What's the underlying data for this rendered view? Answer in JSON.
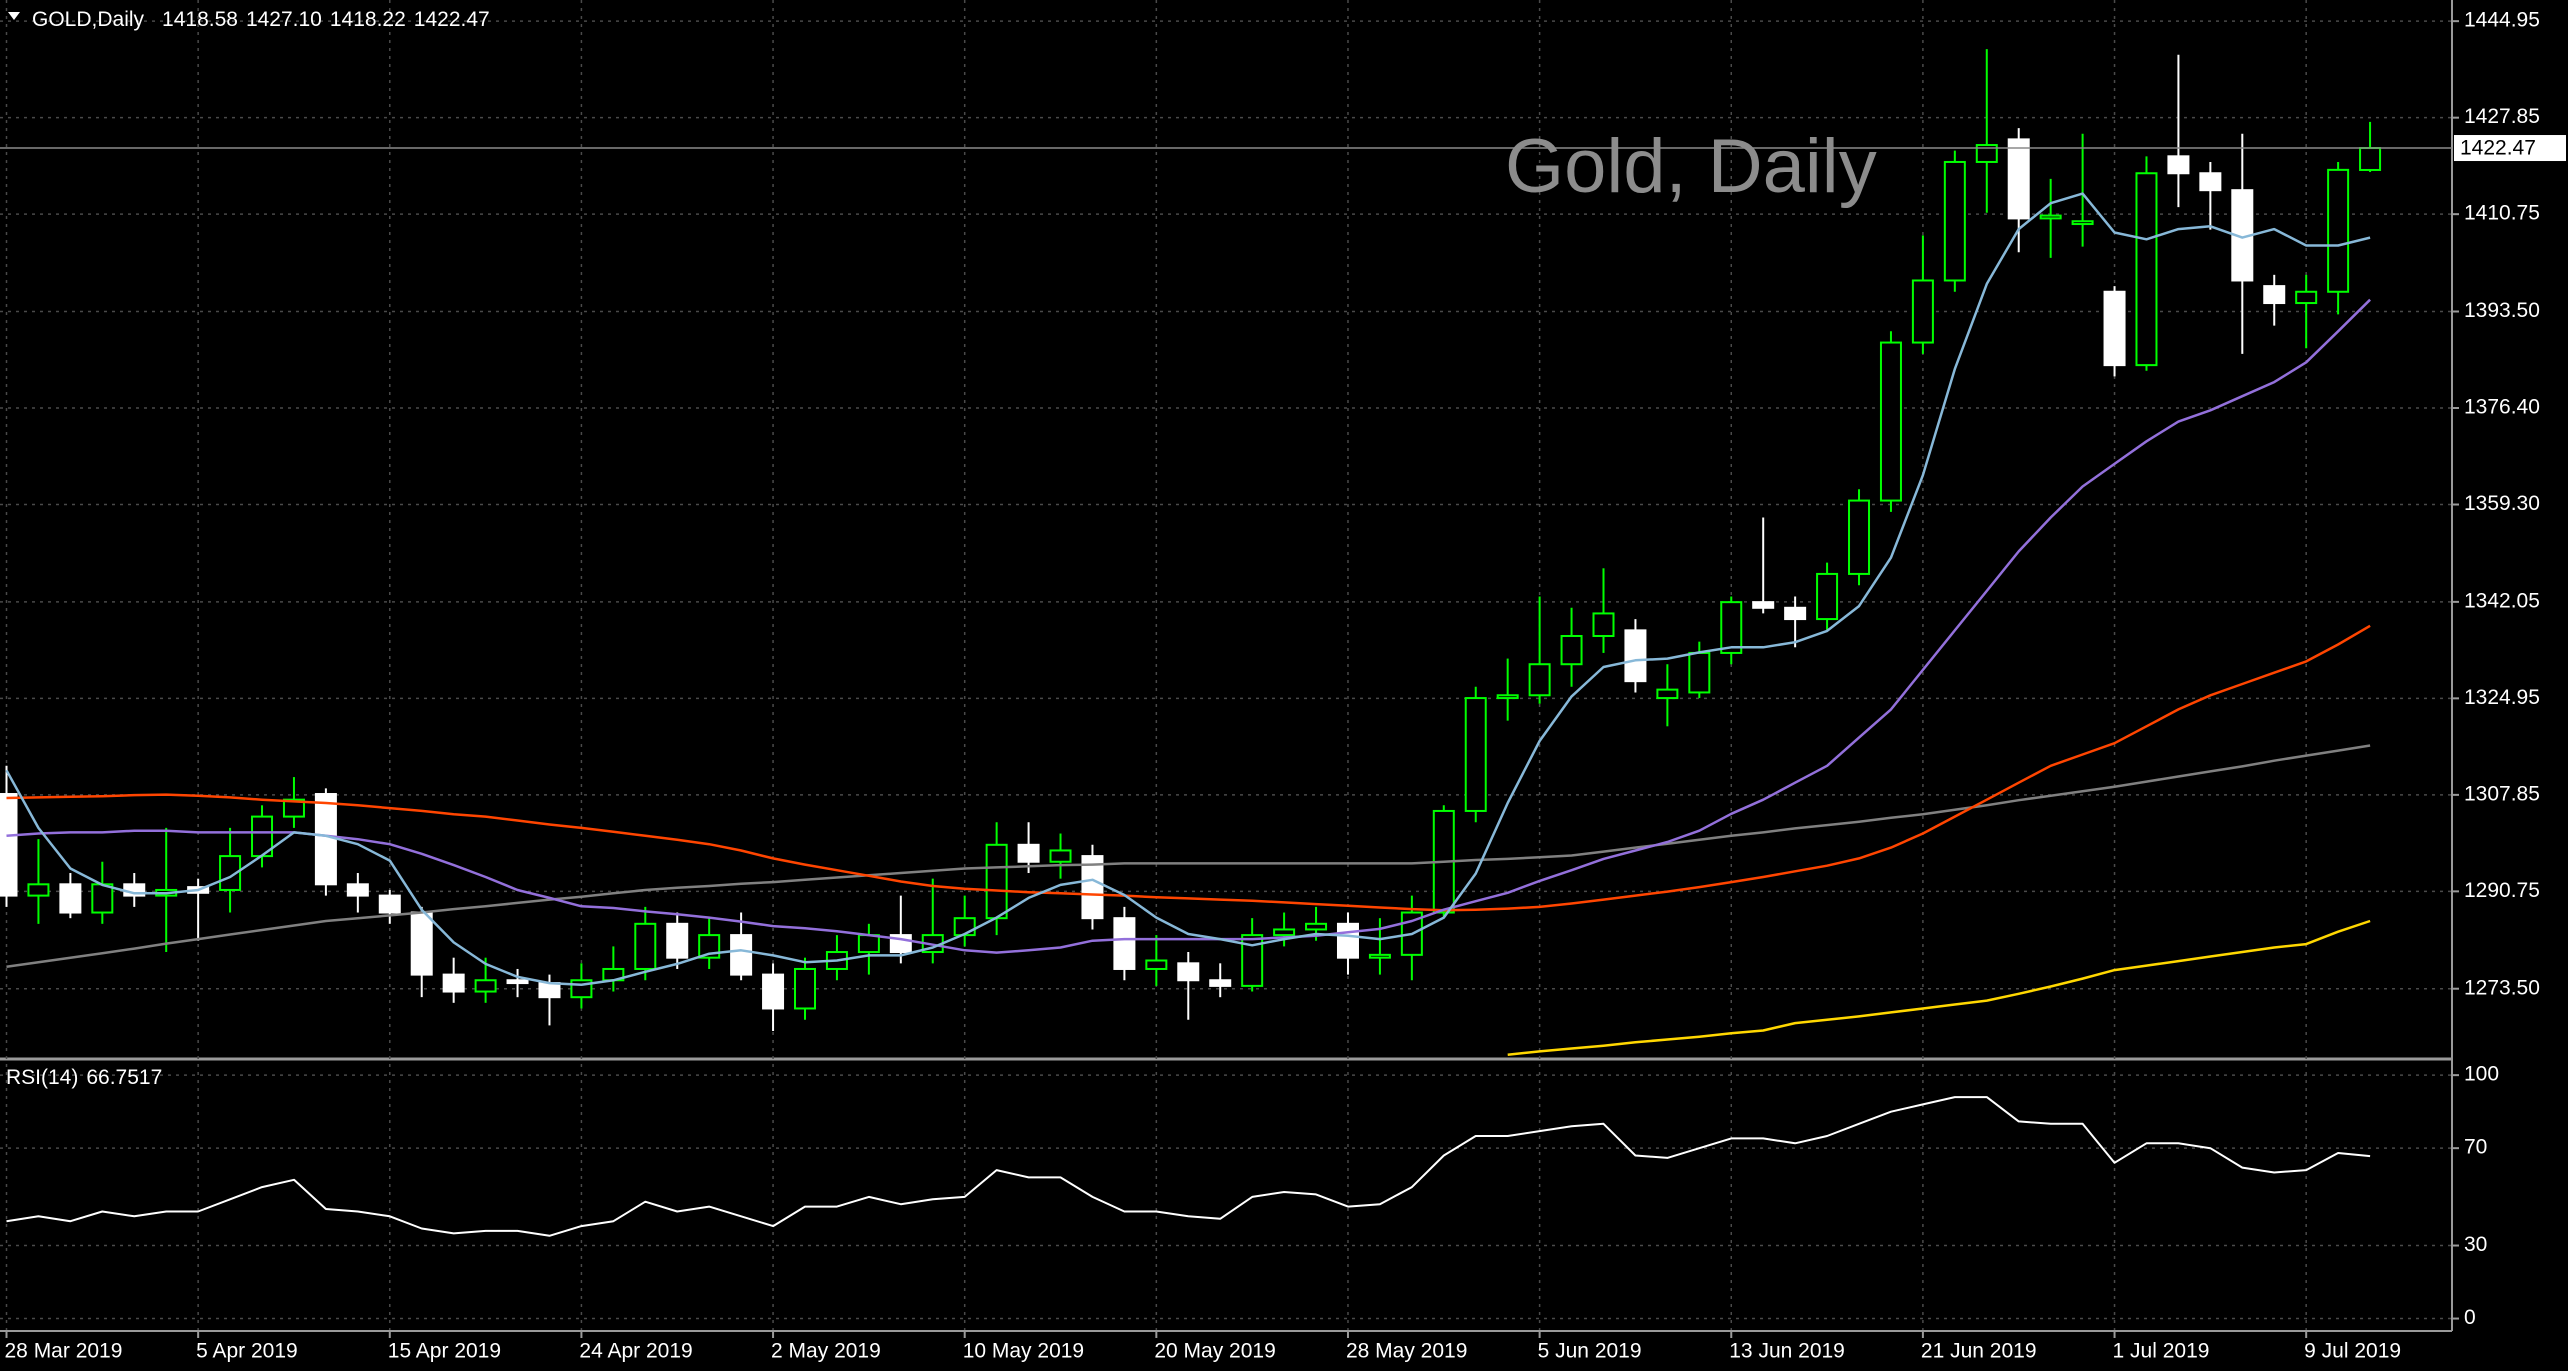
{
  "chart_data": [
    {
      "type": "candlestick",
      "title": "Gold, Daily",
      "header": {
        "symbol": "GOLD,Daily",
        "values": [
          1418.58,
          {
            "value": 1427.1,
            "label": "1427.10"
          },
          1418.22,
          1422.47
        ]
      },
      "categories": [
        "28 Mar 2019",
        null,
        null,
        null,
        null,
        null,
        "5 Apr 2019",
        null,
        null,
        null,
        null,
        null,
        "15 Apr 2019",
        null,
        null,
        null,
        null,
        null,
        "24 Apr 2019",
        null,
        null,
        null,
        null,
        null,
        "2 May 2019",
        null,
        null,
        null,
        null,
        null,
        "10 May 2019",
        null,
        null,
        null,
        null,
        null,
        "20 May 2019",
        null,
        null,
        null,
        null,
        null,
        "28 May 2019",
        null,
        null,
        null,
        null,
        null,
        "5 Jun 2019",
        null,
        null,
        null,
        null,
        null,
        "13 Jun 2019",
        null,
        null,
        null,
        null,
        null,
        "21 Jun 2019",
        null,
        null,
        null,
        null,
        null,
        "1 Jul 2019",
        null,
        null,
        null,
        null,
        null,
        "9 Jul 2019",
        null,
        null
      ],
      "open": [
        1308,
        1290,
        1292,
        1287,
        1292,
        1290,
        1291.5,
        1291,
        1297,
        1304,
        1308,
        1292,
        1290,
        1287,
        1276,
        1273,
        1275,
        1274.5,
        1272,
        1275,
        1277,
        1285,
        1279,
        1283,
        1276,
        1270,
        1277,
        1280,
        1283,
        1280,
        1283,
        1286,
        1299,
        1296,
        1297,
        1286,
        1277,
        1278,
        1275,
        1274,
        1283,
        1284,
        1285,
        1279,
        1279.5,
        1287,
        1305,
        1325,
        1325.5,
        1331,
        1336,
        1337,
        1325,
        1326,
        1333,
        1342,
        1341,
        1339,
        1347,
        1360,
        1388,
        1399,
        1420,
        1424,
        1410,
        1409,
        1397,
        1384,
        1421,
        1418,
        1415,
        1398,
        1395,
        1397,
        1418.58
      ],
      "high": [
        1313,
        1300,
        1294,
        1296,
        1294,
        1302,
        1293,
        1302,
        1306,
        1311,
        1309,
        1294,
        1291,
        1288,
        1279,
        1279,
        1277,
        1276,
        1278,
        1281,
        1288,
        1287,
        1286,
        1287,
        1278,
        1279,
        1283,
        1285,
        1290,
        1293,
        1290,
        1303,
        1303,
        1301,
        1299,
        1288,
        1283,
        1280,
        1278,
        1286,
        1287,
        1288,
        1287,
        1286,
        1290,
        1306,
        1327,
        1332,
        1343,
        1341,
        1348,
        1339,
        1331,
        1335,
        1343,
        1357,
        1343,
        1349,
        1362,
        1390,
        1407,
        1422,
        1440,
        1426,
        1417,
        1425,
        1398,
        1421,
        1439,
        1420,
        1425,
        1400,
        1400,
        1420,
        1427.1
      ],
      "low": [
        1288,
        1285,
        1286,
        1285,
        1288,
        1280,
        1282,
        1287,
        1295,
        1302,
        1290,
        1287,
        1285,
        1272,
        1271,
        1271,
        1272,
        1267,
        1270,
        1273,
        1275,
        1277,
        1277,
        1275,
        1266,
        1268,
        1275,
        1276,
        1278,
        1278,
        1281,
        1283,
        1294,
        1293,
        1284,
        1275,
        1274,
        1268,
        1272,
        1273,
        1281,
        1282,
        1276,
        1276,
        1275,
        1286,
        1303,
        1321,
        1324,
        1327,
        1333,
        1326,
        1320,
        1325,
        1331,
        1340,
        1334,
        1337,
        1345,
        1358,
        1386,
        1397,
        1411,
        1404,
        1403,
        1405,
        1382,
        1383,
        1412,
        1408,
        1386,
        1391,
        1387,
        1393,
        1418.22
      ],
      "close": [
        1290,
        1292,
        1287,
        1292,
        1290,
        1291,
        1290.5,
        1297,
        1304,
        1307,
        1292,
        1290,
        1287,
        1276,
        1273,
        1275,
        1274.5,
        1272,
        1275,
        1277,
        1285,
        1279,
        1283,
        1276,
        1270,
        1277,
        1280,
        1283,
        1280,
        1283,
        1286,
        1299,
        1296,
        1298,
        1286,
        1277,
        1278.5,
        1275,
        1274,
        1283,
        1284,
        1285,
        1279,
        1279.5,
        1287,
        1305,
        1325,
        1325.5,
        1331,
        1336,
        1340,
        1328,
        1326.5,
        1333,
        1342,
        1341,
        1339,
        1347,
        1360,
        1388,
        1399,
        1420,
        1423,
        1410,
        1410.5,
        1409.5,
        1384,
        1418,
        1418,
        1415,
        1399,
        1395,
        1397,
        1418.6,
        1422.47
      ],
      "up_color": "#00ff00",
      "down_color": "#ffffff",
      "series": [
        {
          "color": "#808080",
          "values": [
            1277.4,
            1278.2,
            1279.0,
            1279.8,
            1280.6,
            1281.5,
            1282.3,
            1283.1,
            1283.9,
            1284.7,
            1285.5,
            1286.0,
            1286.5,
            1287.0,
            1287.6,
            1288.1,
            1288.7,
            1289.3,
            1289.8,
            1290.4,
            1291.0,
            1291.4,
            1291.7,
            1292.1,
            1292.4,
            1292.8,
            1293.2,
            1293.6,
            1294.0,
            1294.4,
            1294.8,
            1295.0,
            1295.2,
            1295.4,
            1295.5,
            1295.7,
            1295.7,
            1295.7,
            1295.7,
            1295.7,
            1295.7,
            1295.7,
            1295.7,
            1295.7,
            1295.7,
            1296.0,
            1296.3,
            1296.5,
            1296.8,
            1297.1,
            1297.8,
            1298.5,
            1299.2,
            1299.9,
            1300.6,
            1301.2,
            1301.9,
            1302.5,
            1303.1,
            1303.8,
            1304.4,
            1305.2,
            1306.0,
            1306.9,
            1307.7,
            1308.5,
            1309.3,
            1310.2,
            1311.1,
            1312.0,
            1312.9,
            1313.9,
            1314.8,
            1315.7,
            1316.6
          ]
        },
        {
          "color": "#ffd700",
          "values": [
            null,
            null,
            null,
            null,
            null,
            null,
            null,
            null,
            null,
            null,
            null,
            null,
            null,
            null,
            null,
            null,
            null,
            null,
            null,
            null,
            null,
            null,
            null,
            null,
            null,
            null,
            null,
            null,
            null,
            null,
            null,
            null,
            null,
            null,
            null,
            null,
            null,
            null,
            null,
            null,
            null,
            null,
            null,
            null,
            null,
            null,
            null,
            1261.8,
            1262.4,
            1262.9,
            1263.4,
            1264.0,
            1264.5,
            1265.0,
            1265.6,
            1266.1,
            1267.4,
            1268.0,
            1268.6,
            1269.3,
            1270.0,
            1270.7,
            1271.4,
            1272.6,
            1273.9,
            1275.3,
            1276.8,
            1277.6,
            1278.4,
            1279.2,
            1280.0,
            1280.8,
            1281.4,
            1283.6,
            1285.5
          ]
        },
        {
          "color": "#ff4500",
          "values": [
            1307.3,
            1307.4,
            1307.5,
            1307.6,
            1307.8,
            1307.9,
            1307.7,
            1307.4,
            1307.0,
            1306.7,
            1306.4,
            1306.0,
            1305.5,
            1305.0,
            1304.4,
            1304.0,
            1303.3,
            1302.6,
            1302.0,
            1301.3,
            1300.6,
            1299.9,
            1299.1,
            1298.0,
            1296.6,
            1295.5,
            1294.5,
            1293.5,
            1292.5,
            1291.7,
            1291.2,
            1290.9,
            1290.6,
            1290.4,
            1290.2,
            1290.0,
            1289.7,
            1289.5,
            1289.3,
            1289.1,
            1288.8,
            1288.5,
            1288.2,
            1287.9,
            1287.6,
            1287.4,
            1287.5,
            1287.7,
            1288.0,
            1288.6,
            1289.3,
            1290.0,
            1290.7,
            1291.5,
            1292.4,
            1293.3,
            1294.3,
            1295.3,
            1296.6,
            1298.5,
            1301.0,
            1304.0,
            1307.0,
            1310.0,
            1313.0,
            1315.0,
            1317.0,
            1320.0,
            1323.0,
            1325.5,
            1327.5,
            1329.5,
            1331.5,
            1334.5,
            1337.8
          ]
        },
        {
          "color": "#9370db",
          "values": [
            1300.6,
            1301.0,
            1301.2,
            1301.2,
            1301.5,
            1301.5,
            1301.2,
            1301.2,
            1301.2,
            1301.2,
            1300.6,
            1300.0,
            1299.1,
            1297.4,
            1295.4,
            1293.3,
            1291.0,
            1289.6,
            1288.1,
            1287.8,
            1287.2,
            1286.7,
            1286.1,
            1285.4,
            1284.6,
            1284.2,
            1283.7,
            1283.0,
            1282.3,
            1281.3,
            1280.3,
            1279.9,
            1280.3,
            1280.8,
            1282.0,
            1282.3,
            1282.3,
            1282.3,
            1282.3,
            1282.3,
            1282.6,
            1282.9,
            1283.5,
            1284.1,
            1285.5,
            1287.5,
            1289.0,
            1290.5,
            1292.6,
            1294.5,
            1296.5,
            1298.0,
            1299.5,
            1301.5,
            1304.5,
            1307.0,
            1310.0,
            1313.0,
            1318.0,
            1323.0,
            1330.0,
            1337.0,
            1344.0,
            1351.0,
            1357.0,
            1362.5,
            1366.5,
            1370.5,
            1374.0,
            1376.0,
            1378.5,
            1381.0,
            1384.5,
            1390.0,
            1395.6
          ]
        },
        {
          "color": "#87b8d8",
          "values": [
            1312.2,
            1302.0,
            1294.8,
            1291.9,
            1290.4,
            1290.4,
            1291.0,
            1293.3,
            1297.1,
            1301.2,
            1300.6,
            1299.1,
            1296.2,
            1287.5,
            1281.7,
            1277.9,
            1275.6,
            1274.5,
            1274.2,
            1275.0,
            1276.5,
            1277.9,
            1279.7,
            1280.3,
            1279.4,
            1278.2,
            1278.5,
            1279.4,
            1279.4,
            1280.8,
            1283.2,
            1286.1,
            1289.6,
            1291.9,
            1292.8,
            1290.1,
            1286.1,
            1283.2,
            1282.3,
            1281.2,
            1282.3,
            1283.2,
            1282.9,
            1282.3,
            1283.2,
            1286.1,
            1293.9,
            1306.4,
            1317.4,
            1325.3,
            1330.5,
            1331.7,
            1332.0,
            1333.1,
            1334.0,
            1334.0,
            1334.9,
            1336.9,
            1341.3,
            1349.9,
            1364.5,
            1383.3,
            1398.4,
            1408.1,
            1412.7,
            1414.4,
            1407.5,
            1406.3,
            1408.1,
            1408.6,
            1406.6,
            1408.1,
            1405.2,
            1405.2,
            1406.6
          ]
        }
      ],
      "last_price": 1422.47,
      "ylim": [
        1261.4,
        1448.7
      ],
      "yticks": [
        1444.95,
        1427.85,
        1410.75,
        {
          "value": 1393.5,
          "label": "1393.50"
        },
        {
          "value": 1376.4,
          "label": "1376.40"
        },
        {
          "value": 1359.3,
          "label": "1359.30"
        },
        1342.05,
        1324.95,
        1307.85,
        1290.75,
        {
          "value": 1273.5,
          "label": "1273.50"
        }
      ],
      "grid": true
    },
    {
      "type": "line",
      "title": "RSI(14)",
      "color": "#ffffff",
      "values": [
        40,
        42,
        40,
        44,
        42,
        44,
        44,
        49,
        54,
        57,
        45,
        44,
        42,
        37,
        35,
        36,
        36,
        34,
        38,
        40,
        48,
        44,
        46,
        42,
        38,
        46,
        46,
        50,
        47,
        49,
        50,
        61,
        58,
        58,
        50,
        44,
        44,
        42,
        41,
        50,
        52,
        51,
        46,
        47,
        54,
        67,
        75,
        75,
        77,
        79,
        80,
        67,
        66,
        70,
        74,
        74,
        72,
        75,
        80,
        85,
        88,
        91,
        91,
        81,
        80,
        80,
        64,
        72,
        72,
        70,
        62,
        60,
        61,
        68,
        66.7517
      ],
      "ylim": [
        -4.7,
        105.4
      ],
      "yticks": [
        100,
        70,
        30,
        0
      ],
      "grid": true
    }
  ]
}
